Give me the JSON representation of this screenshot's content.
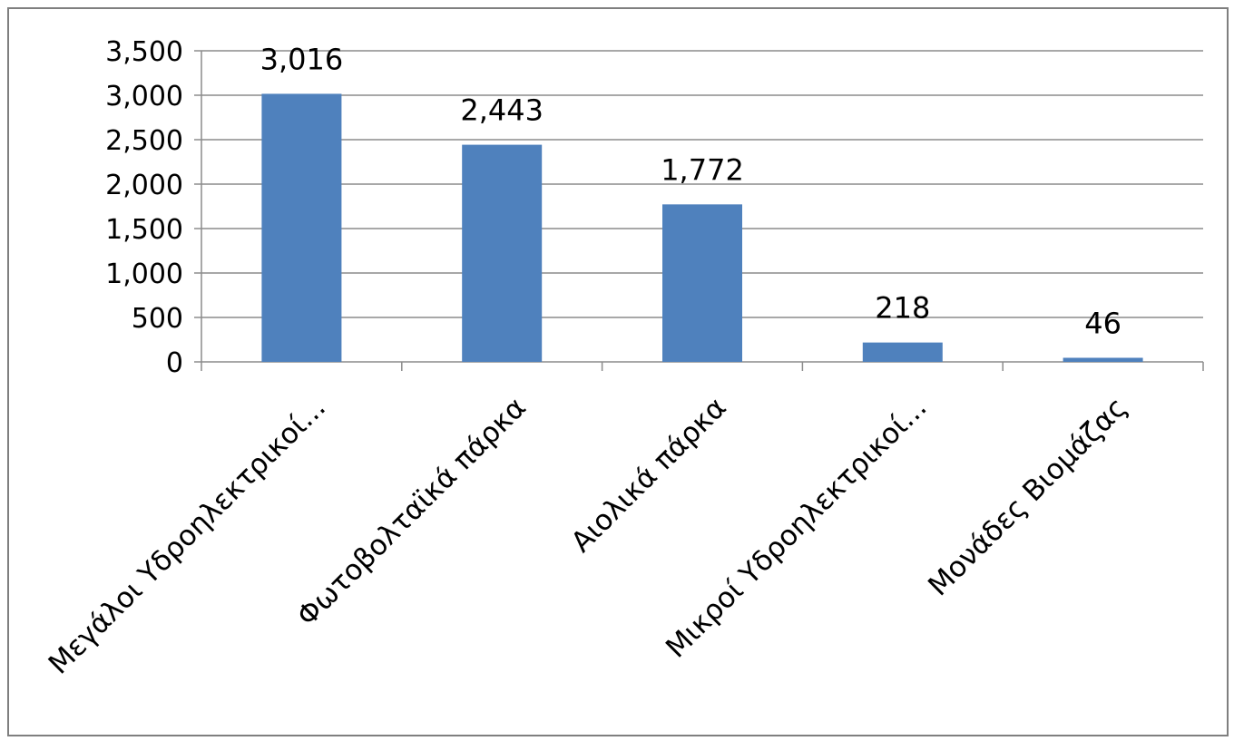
{
  "chart_data": {
    "type": "bar",
    "title": "",
    "xlabel": "",
    "ylabel": "",
    "categories": [
      "Μεγάλοι Υδροηλεκτρικοί...",
      "Φωτοβολταϊκά πάρκα",
      "Αιολικά πάρκα",
      "Μικροί Υδροηλεκτρικοί...",
      "Μονάδες Βιομάζας"
    ],
    "values": [
      3016,
      2443,
      1772,
      218,
      46
    ],
    "value_labels": [
      "3,016",
      "2,443",
      "1,772",
      "218",
      "46"
    ],
    "ylim": [
      0,
      3500
    ],
    "yticks": [
      0,
      500,
      1000,
      1500,
      2000,
      2500,
      3000,
      3500
    ],
    "ytick_labels": [
      "0",
      "500",
      "1,000",
      "1,500",
      "2,000",
      "2,500",
      "3,000",
      "3,500"
    ],
    "grid": true,
    "legend": "none",
    "bar_color": "#4f81bd",
    "grid_color": "#8c8c8c"
  }
}
